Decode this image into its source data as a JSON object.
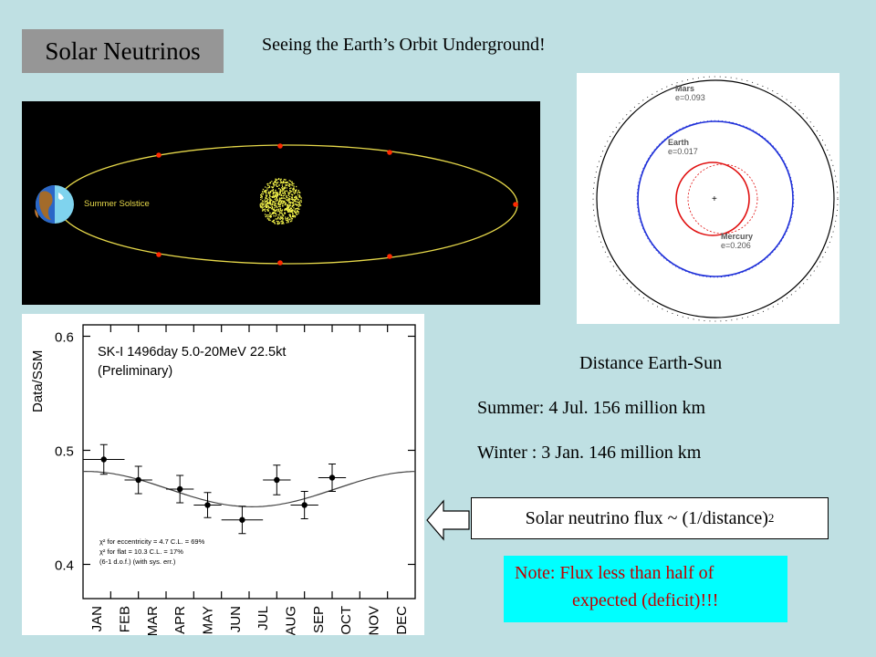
{
  "slide": {
    "title": "Solar Neutrinos",
    "subtitle": "Seeing the Earth’s Orbit Underground!"
  },
  "orbit_figure": {
    "label": "Summer Solstice"
  },
  "planets_figure": {
    "mars": {
      "name": "Mars",
      "ecc": "e=0.093"
    },
    "earth": {
      "name": "Earth",
      "ecc": "e=0.017"
    },
    "mercury": {
      "name": "Mercury",
      "ecc": "e=0.206"
    }
  },
  "distance": {
    "heading": "Distance Earth-Sun",
    "summer": "Summer: 4 Jul.  156 million km",
    "winter": "Winter  :  3 Jan. 146 million km"
  },
  "flux_formula": {
    "text": "Solar  neutrino flux ~ (1/distance)",
    "exponent": "2"
  },
  "note": {
    "line1": "Note: Flux less than half of",
    "line2": "expected (deficit)!!!"
  },
  "chart_data": {
    "type": "scatter",
    "ylabel": "Data/SSM",
    "annotation_title": "SK-I  1496day  5.0-20MeV  22.5kt",
    "annotation_sub": "(Preliminary)",
    "stats_line1": "χ² for eccentricity = 4.7   C.L. = 69%",
    "stats_line2": "χ² for flat = 10.3  C.L. = 17%",
    "stats_line3": "(6-1 d.o.f.) (with sys. err.)",
    "ylim": [
      0.37,
      0.61
    ],
    "yticks": [
      0.4,
      0.5,
      0.6
    ],
    "ytick_labels": [
      "0.4",
      "0.5",
      "0.6"
    ],
    "categories": [
      "JAN",
      "FEB",
      "MAR",
      "APR",
      "MAY",
      "JUN",
      "JUL",
      "AUG",
      "SEP",
      "OCT",
      "NOV",
      "DEC"
    ],
    "points": [
      {
        "x": 0.75,
        "y": 0.492,
        "err": 0.013,
        "xerr": 0.75
      },
      {
        "x": 2.0,
        "y": 0.474,
        "err": 0.012,
        "xerr": 0.5
      },
      {
        "x": 3.5,
        "y": 0.466,
        "err": 0.012,
        "xerr": 0.5
      },
      {
        "x": 4.5,
        "y": 0.452,
        "err": 0.011,
        "xerr": 0.5
      },
      {
        "x": 5.75,
        "y": 0.439,
        "err": 0.012,
        "xerr": 0.75
      },
      {
        "x": 7.0,
        "y": 0.474,
        "err": 0.013,
        "xerr": 0.5
      },
      {
        "x": 8.0,
        "y": 0.452,
        "err": 0.012,
        "xerr": 0.5
      },
      {
        "x": 9.0,
        "y": 0.476,
        "err": 0.012,
        "xerr": 0.5
      }
    ],
    "curve": {
      "mean": 0.466,
      "amplitude": 0.0155,
      "min_month": 6.1
    }
  }
}
